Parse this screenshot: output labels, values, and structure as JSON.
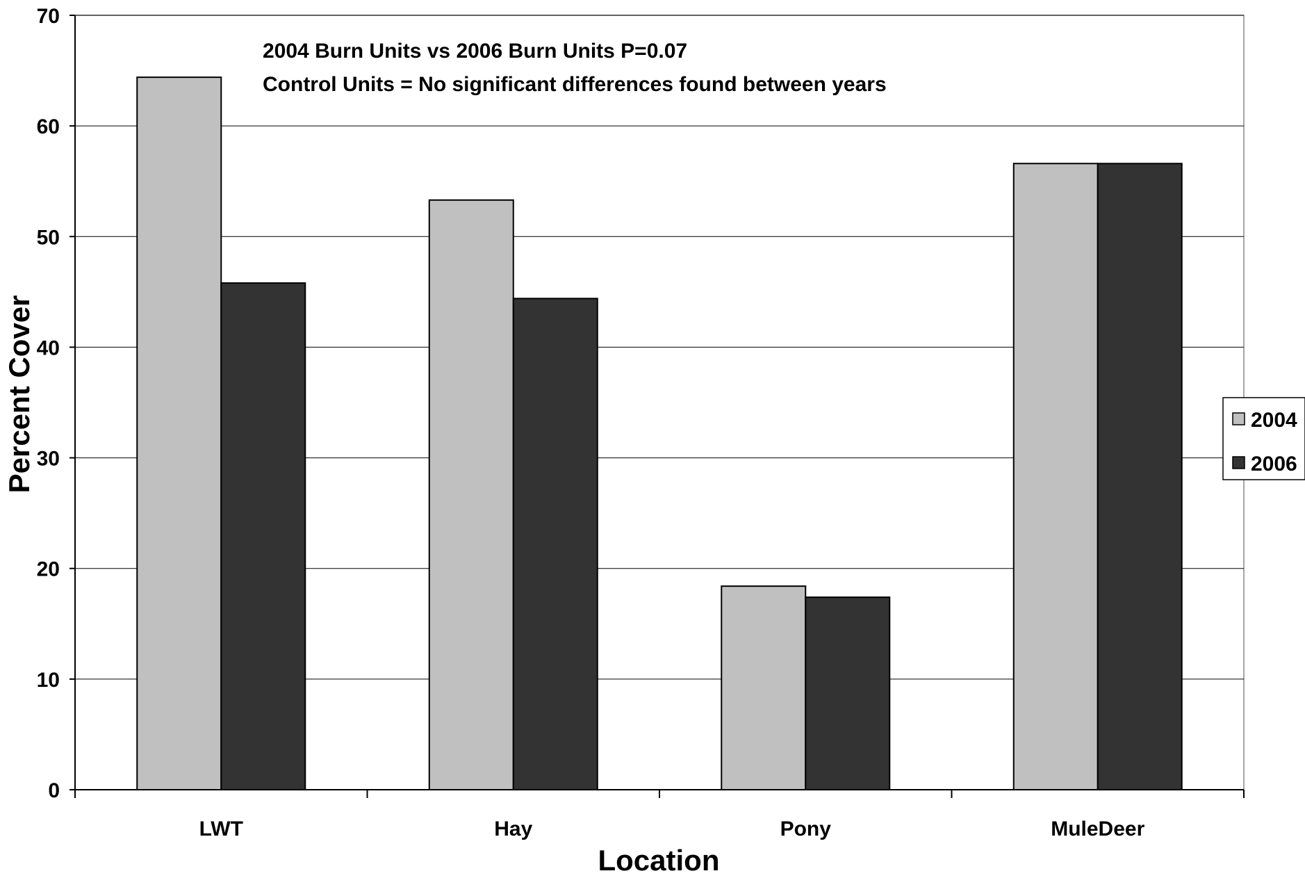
{
  "chart_data": {
    "type": "bar",
    "title": "",
    "annotations": [
      "2004 Burn Units vs 2006 Burn Units P=0.07",
      "Control Units = No significant differences found between years"
    ],
    "xlabel": "Location",
    "ylabel": "Percent Cover",
    "categories": [
      "LWT",
      "Hay",
      "Pony",
      "MuleDeer"
    ],
    "series": [
      {
        "name": "2004",
        "values": [
          64.4,
          53.3,
          18.4,
          56.6
        ],
        "color": "#c0c0c0"
      },
      {
        "name": "2006",
        "values": [
          45.8,
          44.4,
          17.4,
          56.6
        ],
        "color": "#333333"
      }
    ],
    "ylim": [
      0,
      70
    ],
    "yticks": [
      0,
      10,
      20,
      30,
      40,
      50,
      60,
      70
    ],
    "grid": true,
    "legend_position": "right"
  }
}
